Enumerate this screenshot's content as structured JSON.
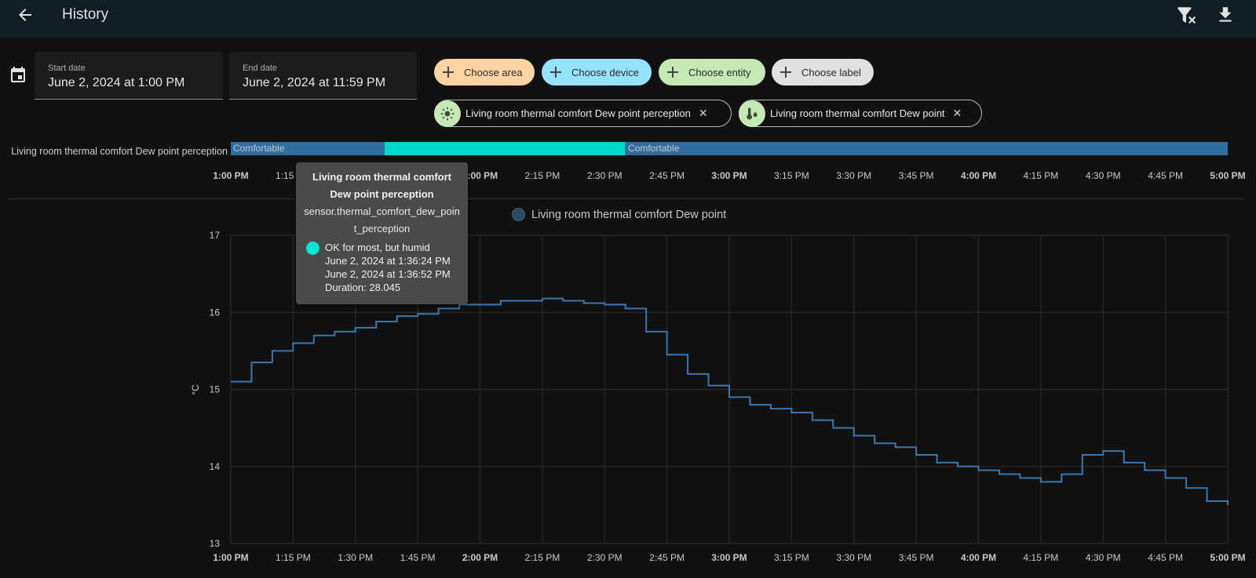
{
  "header": {
    "title": "History"
  },
  "date": {
    "start_label": "Start date",
    "start_value": "June 2, 2024 at 1:00 PM",
    "end_label": "End date",
    "end_value": "June 2, 2024 at 11:59 PM"
  },
  "chips": {
    "area": "Choose area",
    "device": "Choose device",
    "entity": "Choose entity",
    "label": "Choose label"
  },
  "chip_colors": {
    "area": "#ffd3a3",
    "device": "#95e2fc",
    "entity": "#c5e8b5",
    "label": "#e0e0e0"
  },
  "selected_entities": [
    {
      "name": "Living room thermal comfort Dew point perception",
      "icon": "thermometer-sun-icon"
    },
    {
      "name": "Living room thermal comfort Dew point",
      "icon": "thermometer-water-icon"
    }
  ],
  "timeline": {
    "entity_label": "Living room thermal comfort Dew point perception",
    "states": [
      {
        "label": "Comfortable",
        "start": "1:00 PM",
        "end": "1:37 PM",
        "color": "#2f6e9e"
      },
      {
        "label": "OK for most, but humid",
        "start": "1:37 PM",
        "end": "2:35 PM",
        "color": "#00d7cf"
      },
      {
        "label": "Comfortable",
        "start": "2:35 PM",
        "end": "5:00 PM",
        "color": "#2f6e9e"
      }
    ]
  },
  "x_ticks": [
    {
      "t": "1:00 PM",
      "bold": true
    },
    {
      "t": "1:15 PM",
      "bold": false
    },
    {
      "t": "1:30 PM",
      "bold": false
    },
    {
      "t": "1:45 PM",
      "bold": false
    },
    {
      "t": "2:00 PM",
      "bold": true
    },
    {
      "t": "2:15 PM",
      "bold": false
    },
    {
      "t": "2:30 PM",
      "bold": false
    },
    {
      "t": "2:45 PM",
      "bold": false
    },
    {
      "t": "3:00 PM",
      "bold": true
    },
    {
      "t": "3:15 PM",
      "bold": false
    },
    {
      "t": "3:30 PM",
      "bold": false
    },
    {
      "t": "3:45 PM",
      "bold": false
    },
    {
      "t": "4:00 PM",
      "bold": true
    },
    {
      "t": "4:15 PM",
      "bold": false
    },
    {
      "t": "4:30 PM",
      "bold": false
    },
    {
      "t": "4:45 PM",
      "bold": false
    },
    {
      "t": "5:00 PM",
      "bold": true
    }
  ],
  "tooltip": {
    "title": "Living room thermal comfort Dew point perception",
    "entity_id": "sensor.thermal_comfort_dew_point_perception",
    "state": "OK for most, but humid",
    "start": "June 2, 2024 at 1:36:24 PM",
    "end": "June 2, 2024 at 1:36:52 PM",
    "duration": "Duration: 28.045"
  },
  "chart_data": {
    "type": "line",
    "series": [
      {
        "name": "Living room thermal comfort Dew point",
        "color": "#3a78b0",
        "x": [
          "1:00 PM",
          "1:05 PM",
          "1:10 PM",
          "1:15 PM",
          "1:20 PM",
          "1:25 PM",
          "1:30 PM",
          "1:35 PM",
          "1:40 PM",
          "1:45 PM",
          "1:50 PM",
          "1:55 PM",
          "2:00 PM",
          "2:05 PM",
          "2:10 PM",
          "2:15 PM",
          "2:20 PM",
          "2:25 PM",
          "2:30 PM",
          "2:35 PM",
          "2:40 PM",
          "2:45 PM",
          "2:50 PM",
          "2:55 PM",
          "3:00 PM",
          "3:05 PM",
          "3:10 PM",
          "3:15 PM",
          "3:20 PM",
          "3:25 PM",
          "3:30 PM",
          "3:35 PM",
          "3:40 PM",
          "3:45 PM",
          "3:50 PM",
          "3:55 PM",
          "4:00 PM",
          "4:05 PM",
          "4:10 PM",
          "4:15 PM",
          "4:20 PM",
          "4:25 PM",
          "4:30 PM",
          "4:35 PM",
          "4:40 PM",
          "4:45 PM",
          "4:50 PM",
          "4:55 PM",
          "5:00 PM"
        ],
        "values": [
          15.1,
          15.35,
          15.5,
          15.6,
          15.7,
          15.75,
          15.8,
          15.88,
          15.95,
          15.98,
          16.05,
          16.1,
          16.1,
          16.15,
          16.15,
          16.18,
          16.15,
          16.12,
          16.1,
          16.05,
          15.75,
          15.45,
          15.2,
          15.05,
          14.9,
          14.8,
          14.75,
          14.7,
          14.6,
          14.5,
          14.4,
          14.3,
          14.25,
          14.15,
          14.05,
          14.0,
          13.95,
          13.9,
          13.85,
          13.8,
          13.9,
          14.15,
          14.2,
          14.05,
          13.95,
          13.85,
          13.72,
          13.55,
          13.5
        ]
      }
    ],
    "xlabel": "",
    "ylabel": "°C",
    "yticks": [
      "13",
      "14",
      "15",
      "16",
      "17"
    ],
    "ylim": [
      13,
      17
    ],
    "grid": true,
    "legend": "top-center"
  }
}
